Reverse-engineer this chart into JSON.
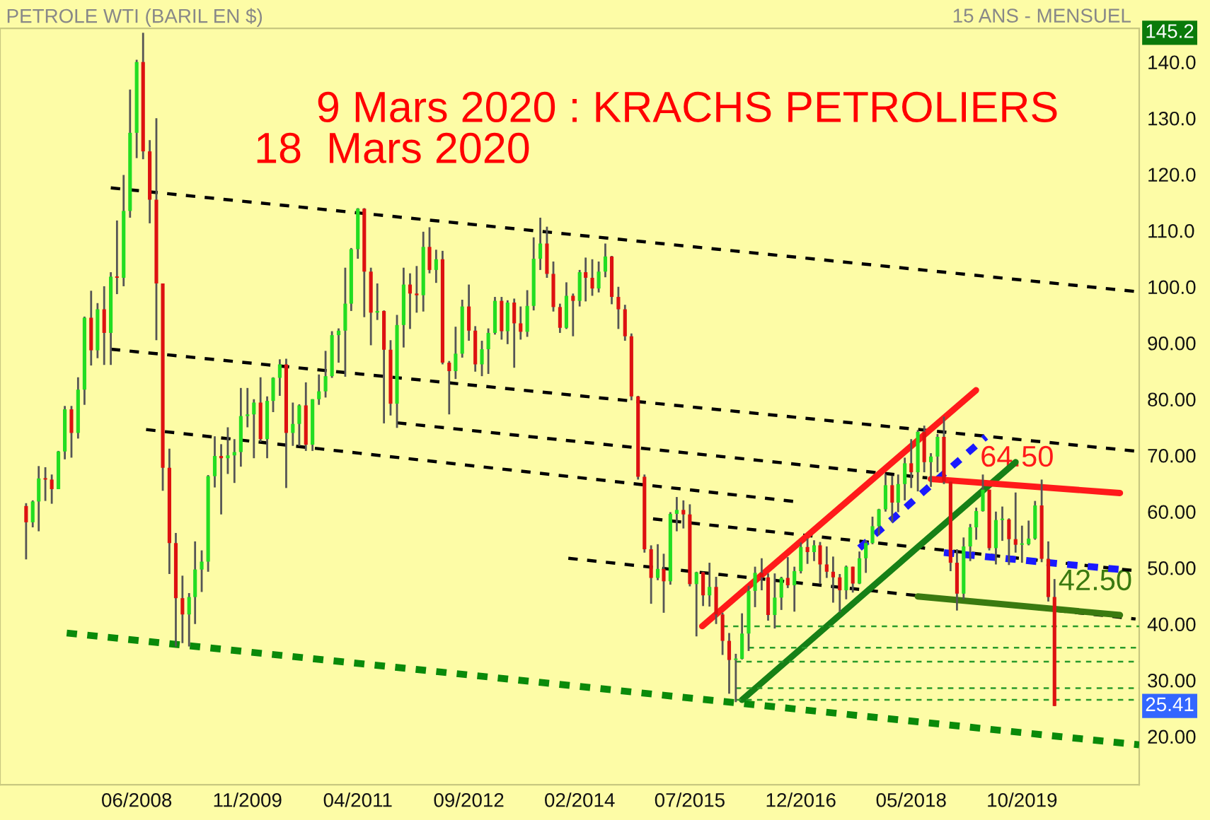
{
  "chart_data": {
    "type": "candlestick",
    "title": "PETROLE WTI (BARIL EN $)",
    "subtitle": "15 ANS - MENSUEL",
    "x": [
      "2007-01",
      "2007-02",
      "2007-03",
      "2007-04",
      "2007-05",
      "2007-06",
      "2007-07",
      "2007-08",
      "2007-09",
      "2007-10",
      "2007-11",
      "2007-12",
      "2008-01",
      "2008-02",
      "2008-03",
      "2008-04",
      "2008-05",
      "2008-06",
      "2008-07",
      "2008-08",
      "2008-09",
      "2008-10",
      "2008-11",
      "2008-12",
      "2009-01",
      "2009-02",
      "2009-03",
      "2009-04",
      "2009-05",
      "2009-06",
      "2009-07",
      "2009-08",
      "2009-09",
      "2009-10",
      "2009-11",
      "2009-12",
      "2010-01",
      "2010-02",
      "2010-03",
      "2010-04",
      "2010-05",
      "2010-06",
      "2010-07",
      "2010-08",
      "2010-09",
      "2010-10",
      "2010-11",
      "2010-12",
      "2011-01",
      "2011-02",
      "2011-03",
      "2011-04",
      "2011-05",
      "2011-06",
      "2011-07",
      "2011-08",
      "2011-09",
      "2011-10",
      "2011-11",
      "2011-12",
      "2012-01",
      "2012-02",
      "2012-03",
      "2012-04",
      "2012-05",
      "2012-06",
      "2012-07",
      "2012-08",
      "2012-09",
      "2012-10",
      "2012-11",
      "2012-12",
      "2013-01",
      "2013-02",
      "2013-03",
      "2013-04",
      "2013-05",
      "2013-06",
      "2013-07",
      "2013-08",
      "2013-09",
      "2013-10",
      "2013-11",
      "2013-12",
      "2014-01",
      "2014-02",
      "2014-03",
      "2014-04",
      "2014-05",
      "2014-06",
      "2014-07",
      "2014-08",
      "2014-09",
      "2014-10",
      "2014-11",
      "2014-12",
      "2015-01",
      "2015-02",
      "2015-03",
      "2015-04",
      "2015-05",
      "2015-06",
      "2015-07",
      "2015-08",
      "2015-09",
      "2015-10",
      "2015-11",
      "2015-12",
      "2016-01",
      "2016-02",
      "2016-03",
      "2016-04",
      "2016-05",
      "2016-06",
      "2016-07",
      "2016-08",
      "2016-09",
      "2016-10",
      "2016-11",
      "2016-12",
      "2017-01",
      "2017-02",
      "2017-03",
      "2017-04",
      "2017-05",
      "2017-06",
      "2017-07",
      "2017-08",
      "2017-09",
      "2017-10",
      "2017-11",
      "2017-12",
      "2018-01",
      "2018-02",
      "2018-03",
      "2018-04",
      "2018-05",
      "2018-06",
      "2018-07",
      "2018-08",
      "2018-09",
      "2018-10",
      "2018-11",
      "2018-12",
      "2019-01",
      "2019-02",
      "2019-03",
      "2019-04",
      "2019-05",
      "2019-06",
      "2019-07",
      "2019-08",
      "2019-09",
      "2019-10",
      "2019-11",
      "2019-12",
      "2020-01",
      "2020-02",
      "2020-03"
    ],
    "ohlc": [
      [
        61.0,
        61.5,
        51.5,
        58.1
      ],
      [
        58.1,
        62.0,
        57.2,
        61.8
      ],
      [
        61.8,
        68.1,
        56.5,
        65.9
      ],
      [
        65.9,
        67.9,
        61.9,
        65.7
      ],
      [
        65.7,
        66.6,
        61.4,
        64.0
      ],
      [
        64.0,
        70.8,
        64.0,
        70.7
      ],
      [
        70.7,
        78.8,
        69.3,
        78.2
      ],
      [
        78.2,
        78.8,
        69.6,
        74.0
      ],
      [
        74.0,
        83.9,
        73.0,
        81.7
      ],
      [
        81.7,
        94.7,
        79.0,
        94.5
      ],
      [
        94.5,
        99.3,
        86.0,
        88.7
      ],
      [
        88.7,
        97.1,
        87.3,
        96.0
      ],
      [
        96.0,
        100.1,
        86.1,
        91.8
      ],
      [
        91.8,
        102.6,
        86.1,
        101.8
      ],
      [
        101.8,
        111.8,
        98.7,
        101.6
      ],
      [
        101.6,
        119.9,
        100.1,
        113.5
      ],
      [
        113.5,
        135.1,
        112.3,
        127.4
      ],
      [
        127.4,
        140.4,
        122.9,
        140.0
      ],
      [
        140.0,
        145.2,
        122.7,
        124.1
      ],
      [
        124.1,
        126.1,
        111.3,
        115.5
      ],
      [
        115.5,
        130.0,
        90.5,
        100.6
      ],
      [
        100.6,
        100.6,
        63.7,
        67.8
      ],
      [
        67.8,
        71.2,
        48.9,
        54.4
      ],
      [
        54.4,
        56.2,
        36.0,
        44.6
      ],
      [
        44.6,
        48.6,
        36.6,
        41.7
      ],
      [
        41.7,
        45.5,
        36.0,
        44.8
      ],
      [
        44.8,
        54.7,
        40.0,
        49.7
      ],
      [
        49.7,
        53.1,
        45.7,
        51.1
      ],
      [
        51.1,
        66.5,
        49.3,
        66.3
      ],
      [
        66.3,
        73.4,
        64.3,
        69.9
      ],
      [
        69.9,
        72.0,
        59.5,
        69.5
      ],
      [
        69.5,
        75.0,
        66.7,
        70.0
      ],
      [
        70.0,
        72.9,
        65.1,
        70.6
      ],
      [
        70.6,
        82.0,
        68.0,
        77.0
      ],
      [
        77.0,
        82.0,
        75.0,
        77.3
      ],
      [
        77.3,
        80.0,
        69.5,
        79.4
      ],
      [
        79.4,
        83.9,
        72.4,
        72.9
      ],
      [
        72.9,
        80.5,
        69.5,
        79.7
      ],
      [
        79.7,
        83.9,
        77.7,
        83.8
      ],
      [
        83.8,
        87.1,
        80.6,
        86.2
      ],
      [
        86.2,
        87.2,
        64.2,
        74.0
      ],
      [
        74.0,
        79.4,
        71.7,
        75.6
      ],
      [
        75.6,
        79.1,
        71.7,
        78.9
      ],
      [
        78.9,
        83.0,
        70.8,
        71.9
      ],
      [
        71.9,
        80.0,
        70.8,
        80.0
      ],
      [
        80.0,
        84.4,
        79.0,
        81.4
      ],
      [
        81.4,
        88.6,
        80.3,
        84.1
      ],
      [
        84.1,
        92.1,
        83.8,
        91.4
      ],
      [
        91.4,
        92.6,
        86.5,
        92.2
      ],
      [
        92.2,
        103.4,
        84.0,
        97.0
      ],
      [
        97.0,
        106.9,
        95.7,
        106.7
      ],
      [
        106.7,
        114.0,
        105.0,
        113.9
      ],
      [
        113.9,
        114.0,
        94.6,
        102.7
      ],
      [
        102.7,
        103.4,
        89.6,
        95.4
      ],
      [
        95.4,
        100.6,
        94.1,
        95.7
      ],
      [
        95.7,
        95.8,
        75.7,
        88.8
      ],
      [
        88.8,
        90.5,
        77.1,
        79.2
      ],
      [
        79.2,
        95.0,
        74.9,
        93.2
      ],
      [
        93.2,
        103.4,
        89.2,
        100.4
      ],
      [
        100.4,
        102.4,
        92.5,
        98.8
      ],
      [
        98.8,
        103.7,
        95.4,
        98.5
      ],
      [
        98.5,
        109.8,
        95.6,
        107.1
      ],
      [
        107.1,
        110.6,
        102.4,
        103.0
      ],
      [
        103.0,
        106.6,
        100.7,
        104.9
      ],
      [
        104.9,
        106.4,
        86.2,
        86.5
      ],
      [
        86.5,
        86.8,
        77.3,
        85.0
      ],
      [
        85.0,
        92.9,
        83.6,
        88.1
      ],
      [
        88.1,
        97.7,
        87.4,
        96.5
      ],
      [
        96.5,
        100.4,
        90.4,
        92.2
      ],
      [
        92.2,
        93.0,
        84.9,
        86.2
      ],
      [
        86.2,
        90.4,
        84.1,
        88.9
      ],
      [
        88.9,
        92.6,
        84.5,
        91.8
      ],
      [
        91.8,
        98.2,
        91.5,
        97.5
      ],
      [
        97.5,
        98.2,
        90.6,
        92.1
      ],
      [
        92.1,
        97.6,
        89.8,
        97.2
      ],
      [
        97.2,
        97.9,
        85.6,
        93.5
      ],
      [
        93.5,
        96.5,
        90.6,
        92.0
      ],
      [
        92.0,
        99.4,
        91.1,
        96.6
      ],
      [
        96.6,
        108.8,
        95.8,
        105.0
      ],
      [
        105.0,
        112.3,
        103.0,
        107.7
      ],
      [
        107.7,
        110.7,
        101.6,
        102.3
      ],
      [
        102.3,
        104.5,
        95.6,
        96.4
      ],
      [
        96.4,
        97.0,
        91.8,
        92.7
      ],
      [
        92.7,
        100.8,
        92.5,
        98.4
      ],
      [
        98.4,
        98.8,
        91.2,
        97.5
      ],
      [
        97.5,
        103.0,
        96.5,
        102.6
      ],
      [
        102.6,
        105.2,
        97.4,
        101.6
      ],
      [
        101.6,
        104.9,
        98.4,
        99.7
      ],
      [
        99.7,
        104.5,
        99.0,
        102.7
      ],
      [
        102.7,
        107.7,
        101.7,
        105.4
      ],
      [
        105.4,
        105.5,
        96.9,
        98.2
      ],
      [
        98.2,
        100.0,
        92.5,
        96.0
      ],
      [
        96.0,
        96.8,
        90.4,
        91.2
      ],
      [
        91.2,
        91.7,
        79.8,
        80.5
      ],
      [
        80.5,
        80.6,
        65.7,
        66.2
      ],
      [
        66.2,
        66.6,
        52.7,
        53.3
      ],
      [
        53.3,
        54.0,
        43.6,
        48.2
      ],
      [
        48.2,
        54.2,
        47.8,
        49.8
      ],
      [
        49.8,
        52.5,
        42.0,
        47.6
      ],
      [
        47.6,
        59.9,
        47.0,
        59.6
      ],
      [
        59.6,
        62.6,
        56.5,
        60.3
      ],
      [
        60.3,
        62.0,
        57.0,
        59.5
      ],
      [
        59.5,
        61.3,
        46.7,
        47.1
      ],
      [
        47.1,
        49.3,
        37.8,
        49.2
      ],
      [
        49.2,
        49.3,
        43.2,
        45.1
      ],
      [
        45.1,
        50.9,
        43.1,
        46.6
      ],
      [
        46.6,
        48.4,
        40.0,
        41.7
      ],
      [
        41.7,
        42.0,
        34.5,
        37.0
      ],
      [
        37.0,
        38.4,
        27.6,
        33.6
      ],
      [
        33.6,
        34.7,
        26.1,
        33.8
      ],
      [
        33.8,
        41.9,
        33.7,
        38.3
      ],
      [
        38.3,
        46.8,
        35.2,
        45.9
      ],
      [
        45.9,
        50.2,
        43.0,
        49.1
      ],
      [
        49.1,
        51.7,
        46.0,
        48.3
      ],
      [
        48.3,
        49.0,
        40.6,
        41.6
      ],
      [
        41.6,
        49.0,
        39.2,
        44.7
      ],
      [
        44.7,
        48.4,
        42.5,
        48.2
      ],
      [
        48.2,
        51.9,
        46.4,
        46.9
      ],
      [
        46.9,
        50.2,
        42.2,
        49.4
      ],
      [
        49.4,
        54.5,
        49.0,
        53.7
      ],
      [
        53.7,
        55.2,
        50.7,
        52.8
      ],
      [
        52.8,
        54.9,
        51.2,
        54.0
      ],
      [
        54.0,
        54.6,
        47.1,
        50.6
      ],
      [
        50.6,
        53.8,
        48.2,
        49.3
      ],
      [
        49.3,
        52.0,
        43.8,
        48.3
      ],
      [
        48.3,
        48.9,
        42.1,
        46.0
      ],
      [
        46.0,
        50.4,
        44.4,
        50.2
      ],
      [
        50.2,
        50.2,
        45.6,
        47.2
      ],
      [
        47.2,
        52.9,
        47.1,
        51.7
      ],
      [
        51.7,
        54.9,
        49.1,
        54.4
      ],
      [
        54.4,
        59.1,
        54.2,
        57.4
      ],
      [
        57.4,
        60.5,
        55.8,
        60.4
      ],
      [
        60.4,
        66.7,
        60.0,
        64.7
      ],
      [
        64.7,
        66.4,
        58.1,
        61.6
      ],
      [
        61.6,
        66.6,
        59.9,
        64.9
      ],
      [
        64.9,
        69.6,
        62.0,
        68.6
      ],
      [
        68.6,
        72.9,
        64.2,
        67.0
      ],
      [
        67.0,
        74.5,
        63.6,
        74.2
      ],
      [
        74.2,
        75.3,
        67.0,
        68.8
      ],
      [
        68.8,
        70.4,
        64.4,
        69.8
      ],
      [
        69.8,
        73.8,
        67.0,
        73.3
      ],
      [
        73.3,
        76.9,
        64.9,
        65.3
      ],
      [
        65.3,
        65.3,
        49.4,
        50.9
      ],
      [
        50.9,
        53.3,
        42.4,
        45.4
      ],
      [
        45.4,
        55.4,
        44.4,
        53.8
      ],
      [
        53.8,
        57.8,
        51.2,
        57.2
      ],
      [
        57.2,
        60.7,
        55.0,
        60.1
      ],
      [
        60.1,
        66.6,
        60.0,
        63.9
      ],
      [
        63.9,
        63.9,
        53.1,
        53.5
      ],
      [
        53.5,
        60.0,
        50.6,
        58.5
      ],
      [
        58.5,
        60.9,
        54.8,
        58.6
      ],
      [
        58.6,
        58.8,
        50.5,
        55.1
      ],
      [
        55.1,
        63.4,
        52.7,
        54.1
      ],
      [
        54.1,
        57.5,
        50.9,
        54.2
      ],
      [
        54.2,
        58.4,
        54.0,
        55.2
      ],
      [
        55.2,
        61.9,
        55.0,
        61.1
      ],
      [
        61.1,
        65.7,
        51.0,
        51.6
      ],
      [
        51.6,
        54.7,
        44.0,
        44.8
      ],
      [
        44.8,
        48.0,
        25.41,
        25.41
      ]
    ],
    "series": [
      {
        "type": "line",
        "color": "#000000",
        "line_style": "dashed",
        "x": [
          "2008-02-01",
          "2021-04-01"
        ],
        "values": [
          117.6,
          99.1
        ]
      },
      {
        "type": "line",
        "color": "#000000",
        "line_style": "dashed",
        "x": [
          "2008-02-01",
          "2021-04-01"
        ],
        "values": [
          88.9,
          70.7
        ]
      },
      {
        "type": "line",
        "color": "#000000",
        "line_style": "dashed",
        "x": [
          "2008-07-15",
          "2016-11-01"
        ],
        "values": [
          74.6,
          61.8
        ]
      },
      {
        "type": "line",
        "color": "#000000",
        "line_style": "dashed",
        "x": [
          "2011-10-01",
          "2018-07-15"
        ],
        "values": [
          75.8,
          66.0
        ]
      },
      {
        "type": "line",
        "color": "#000000",
        "line_style": "dashed",
        "x": [
          "2015-01-10",
          "2021-04-01"
        ],
        "values": [
          58.7,
          49.4
        ]
      },
      {
        "type": "line",
        "color": "#000000",
        "line_style": "dashed",
        "x": [
          "2013-12-10",
          "2021-03-15"
        ],
        "values": [
          51.7,
          40.9
        ]
      },
      {
        "type": "line",
        "color": "#ff1a1a",
        "line_style": "solid",
        "x": [
          "2015-08-28",
          "2019-02-28"
        ],
        "values": [
          39.6,
          81.6
        ]
      },
      {
        "type": "line",
        "color": "#168016",
        "line_style": "solid",
        "x": [
          "2016-03-01",
          "2019-09-01"
        ],
        "values": [
          26.5,
          68.8
        ]
      },
      {
        "type": "line",
        "color": "#1a1aff",
        "line_style": "dotted",
        "x": [
          "2017-09-01",
          "2019-04-15"
        ],
        "values": [
          53.5,
          73.3
        ]
      },
      {
        "type": "line",
        "color": "#1a1aff",
        "line_style": "dotted",
        "x": [
          "2018-10-01",
          "2021-01-01"
        ],
        "values": [
          52.7,
          49.7
        ]
      },
      {
        "type": "line",
        "color": "#ff1a1a",
        "line_style": "solid",
        "x": [
          "2018-08-01",
          "2021-01-01"
        ],
        "values": [
          65.8,
          63.3
        ]
      },
      {
        "type": "line",
        "color": "#3a7a10",
        "line_style": "solid",
        "x": [
          "2018-06-01",
          "2021-01-01"
        ],
        "values": [
          44.9,
          41.6
        ]
      },
      {
        "type": "line",
        "color": "#0a8a0a",
        "line_style": "dotted",
        "x": [
          "2007-07-10",
          "2021-04-01"
        ],
        "values": [
          38.4,
          18.5
        ]
      },
      {
        "type": "line",
        "color": "#2a9a2a",
        "line_style": "dashed",
        "x": [
          "2015-12-01",
          "2021-04-01"
        ],
        "values": [
          39.6,
          39.6
        ]
      },
      {
        "type": "line",
        "color": "#2a9a2a",
        "line_style": "dashed",
        "x": [
          "2016-04-01",
          "2021-04-01"
        ],
        "values": [
          35.8,
          35.8
        ]
      },
      {
        "type": "line",
        "color": "#2a9a2a",
        "line_style": "dashed",
        "x": [
          "2016-02-01",
          "2021-04-01"
        ],
        "values": [
          33.3,
          33.3
        ]
      },
      {
        "type": "line",
        "color": "#2a9a2a",
        "line_style": "dashed",
        "x": [
          "2016-02-01",
          "2021-04-01"
        ],
        "values": [
          28.6,
          28.6
        ]
      },
      {
        "type": "line",
        "color": "#2a9a2a",
        "line_style": "dashed",
        "x": [
          "2016-02-01",
          "2021-04-01"
        ],
        "values": [
          26.5,
          26.5
        ]
      }
    ],
    "annotations": [
      "9 Mars 2020 : KRACHS PETROLIERS",
      "18  Mars 2020",
      {
        "text": "64.50",
        "x": "2019-03-01",
        "y": 64.5
      },
      {
        "text": "42.50",
        "x": "2020-03-01",
        "y": 42.5
      },
      {
        "text": "145.2",
        "y": 145.2
      },
      {
        "text": "25.41",
        "y": 25.41
      }
    ],
    "xlim": [
      "2006-09-01",
      "2021-04-01"
    ],
    "ylim": [
      11.4,
      146.0
    ],
    "xticks": [
      {
        "value": "2008-06-01",
        "label": "06/2008"
      },
      {
        "value": "2009-11-01",
        "label": "11/2009"
      },
      {
        "value": "2011-04-01",
        "label": "04/2011"
      },
      {
        "value": "2012-09-01",
        "label": "09/2012"
      },
      {
        "value": "2014-02-01",
        "label": "02/2014"
      },
      {
        "value": "2015-07-01",
        "label": "07/2015"
      },
      {
        "value": "2016-12-01",
        "label": "12/2016"
      },
      {
        "value": "2018-05-01",
        "label": "05/2018"
      },
      {
        "value": "2019-10-01",
        "label": "10/2019"
      }
    ],
    "yticks": [
      {
        "value": 20,
        "label": "20.00"
      },
      {
        "value": 30,
        "label": "30.00"
      },
      {
        "value": 40,
        "label": "40.00"
      },
      {
        "value": 50,
        "label": "50.00"
      },
      {
        "value": 60,
        "label": "60.00"
      },
      {
        "value": 70,
        "label": "70.00"
      },
      {
        "value": 80,
        "label": "80.00"
      },
      {
        "value": 90,
        "label": "90.00"
      },
      {
        "value": 100,
        "label": "100.0"
      },
      {
        "value": 110,
        "label": "110.0"
      },
      {
        "value": 120,
        "label": "120.0"
      },
      {
        "value": 130,
        "label": "130.0"
      },
      {
        "value": 140,
        "label": "140.0"
      }
    ],
    "grid": false,
    "legend": false
  }
}
